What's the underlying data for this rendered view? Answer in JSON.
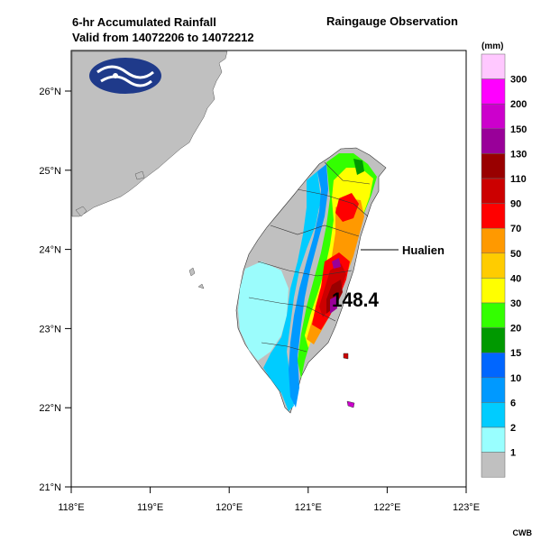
{
  "header": {
    "title_line1": "6-hr Accumulated Rainfall",
    "title_line2": "Valid from 14072206 to 14072212",
    "observation": "Raingauge Observation"
  },
  "map": {
    "y_ticks": [
      "26°N",
      "25°N",
      "24°N",
      "23°N",
      "22°N",
      "21°N"
    ],
    "x_ticks": [
      "118°E",
      "119°E",
      "120°E",
      "121°E",
      "122°E",
      "123°E"
    ],
    "annotation_label": "Hualien",
    "max_value": "148.4",
    "land_color": "#c0c0c0",
    "sea_color": "#ffffff"
  },
  "legend": {
    "unit": "(mm)",
    "levels": [
      {
        "label": "300",
        "color": "#ffc8ff"
      },
      {
        "label": "200",
        "color": "#ff00ff"
      },
      {
        "label": "150",
        "color": "#cc00cc"
      },
      {
        "label": "130",
        "color": "#990099"
      },
      {
        "label": "110",
        "color": "#990000"
      },
      {
        "label": "90",
        "color": "#cc0000"
      },
      {
        "label": "70",
        "color": "#ff0000"
      },
      {
        "label": "50",
        "color": "#ff9900"
      },
      {
        "label": "40",
        "color": "#ffcc00"
      },
      {
        "label": "30",
        "color": "#ffff00"
      },
      {
        "label": "20",
        "color": "#33ff00"
      },
      {
        "label": "15",
        "color": "#009900"
      },
      {
        "label": "10",
        "color": "#0066ff"
      },
      {
        "label": "6",
        "color": "#0099ff"
      },
      {
        "label": "2",
        "color": "#00ccff"
      },
      {
        "label": "1",
        "color": "#99ffff"
      },
      {
        "label": "",
        "color": "#c0c0c0"
      }
    ]
  },
  "footer": {
    "credit": "CWB"
  }
}
